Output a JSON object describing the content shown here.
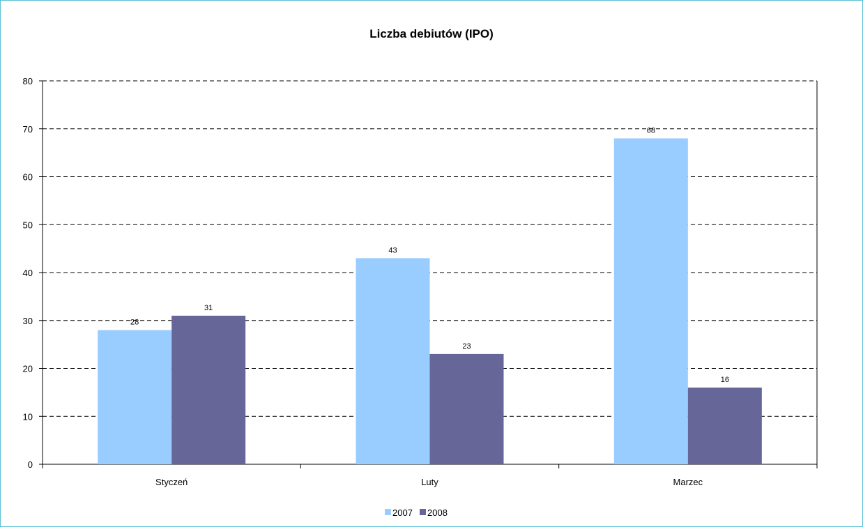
{
  "chart_data": {
    "type": "bar",
    "title": "Liczba debiutów (IPO)",
    "xlabel": "",
    "ylabel": "",
    "categories": [
      "Styczeń",
      "Luty",
      "Marzec"
    ],
    "series": [
      {
        "name": "2007",
        "values": [
          28,
          43,
          68
        ],
        "color": "#99ccff"
      },
      {
        "name": "2008",
        "values": [
          31,
          23,
          16
        ],
        "color": "#666699"
      }
    ],
    "ylim": [
      0,
      80
    ],
    "yticks": [
      0,
      10,
      20,
      30,
      40,
      50,
      60,
      70,
      80
    ],
    "grid": "horizontal dashed",
    "legend_position": "bottom"
  }
}
